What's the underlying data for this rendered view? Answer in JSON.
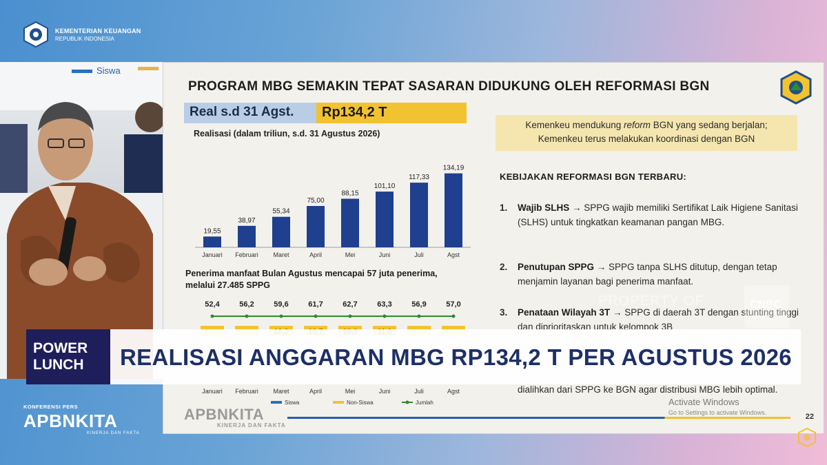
{
  "header": {
    "ministry_line1": "KEMENTERIAN KEUANGAN",
    "ministry_line2": "REPUBLIK INDONESIA"
  },
  "video": {
    "board_label": "Siswa"
  },
  "slide": {
    "title": "PROGRAM MBG SEMAKIN TEPAT SASARAN DIDUKUNG OLEH REFORMASI BGN",
    "real_label": "Real s.d 31 Agst.",
    "real_value": "Rp134,2 T",
    "chart_subtitle": "Realisasi (dalam triliun, s.d. 31 Agustus 2026)",
    "penerima_line1": "Penerima manfaat Bulan Agustus mencapai 57 juta penerima,",
    "penerima_line2": "melalui 27.485 SPPG",
    "box_line1_pre": "Kemenkeu mendukung ",
    "box_line1_em": "reform",
    "box_line1_post": " BGN yang sedang berjalan;",
    "box_line2": "Kemenkeu terus melakukan koordinasi dengan BGN",
    "kebijakan_title": "KEBIJAKAN REFORMASI BGN TERBARU:",
    "items": [
      {
        "num": "1.",
        "bold": "Wajib SLHS",
        "text": " → SPPG wajib memiliki Sertifikat Laik Higiene Sanitasi (SLHS) untuk tingkatkan keamanan pangan MBG."
      },
      {
        "num": "2.",
        "bold": "Penutupan SPPG",
        "text": " → SPPG tanpa SLHS ditutup, dengan tetap menjamin layanan bagi penerima manfaat."
      },
      {
        "num": "3.",
        "bold": "Penataan Wilayah 3T",
        "text": " → SPPG di daerah 3T dengan stunting tinggi dan diprioritaskan untuk kelompok 3B"
      }
    ],
    "item_tail": "dialihkan dari SPPG ke BGN agar distribusi MBG lebih optimal.",
    "footer_logo": "APBNKITA",
    "footer_sub": "KINERJA DAN FAKTA",
    "page_number": "22"
  },
  "watermark": {
    "text": "PROPERTY OF",
    "box": "CNBC"
  },
  "activate": {
    "line1": "Activate Windows",
    "line2": "Go to Settings to activate Windows."
  },
  "banner": {
    "show_line1": "POWER",
    "show_line2": "LUNCH",
    "headline": "REALISASI ANGGARAN MBG RP134,2 T PER AGUSTUS 2026"
  },
  "bottom": {
    "konferensi": "KONFERENSI PERS",
    "apbn": "APBNKITA",
    "apbn_sub": "KINERJA DAN FAKTA"
  },
  "colors": {
    "bar": "#1f3f8f",
    "line": "#2e8b2e",
    "nonsiswa": "#f2c230",
    "siswa": "#2a6fc2"
  },
  "chart_data": [
    {
      "type": "bar",
      "title": "Realisasi (dalam triliun, s.d. 31 Agustus 2026)",
      "categories": [
        "Januari",
        "Februari",
        "Maret",
        "April",
        "Mei",
        "Juni",
        "Juli",
        "Agst"
      ],
      "values": [
        19.55,
        38.97,
        55.34,
        75.0,
        88.15,
        101.1,
        117.33,
        134.19
      ],
      "labels": [
        "19,55",
        "38,97",
        "55,34",
        "75,00",
        "88,15",
        "101,10",
        "117,33",
        "134,19"
      ],
      "ylim": [
        0,
        140
      ]
    },
    {
      "type": "line",
      "categories": [
        "Januari",
        "Februari",
        "Maret",
        "April",
        "Mei",
        "Juni",
        "Juli",
        "Agst"
      ],
      "series": [
        {
          "name": "Jumlah",
          "values": [
            52.4,
            56.2,
            59.6,
            61.7,
            62.7,
            63.3,
            56.9,
            57.0
          ],
          "labels": [
            "52,4",
            "56,2",
            "59,6",
            "61,7",
            "62,7",
            "63,3",
            "56,9",
            "57,0"
          ]
        },
        {
          "name": "Non-Siswa",
          "partial_labels": [
            "",
            "",
            "10,2",
            "10,7",
            "10,9",
            "11,0",
            "",
            ""
          ]
        }
      ],
      "legend": [
        "Siswa",
        "Non-Siswa",
        "Jumlah"
      ]
    }
  ]
}
